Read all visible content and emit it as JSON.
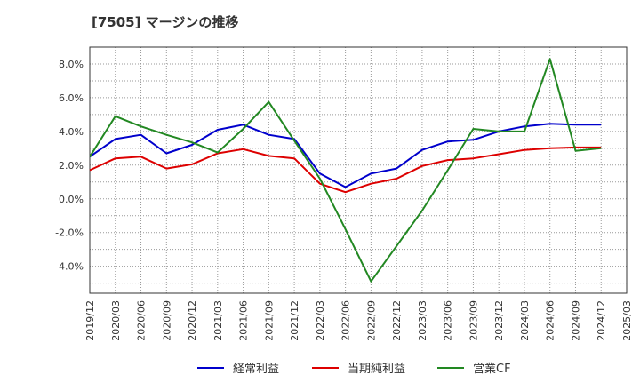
{
  "chart_data": {
    "type": "line",
    "title": "[7505]  マージンの推移",
    "x": [
      "2019/12",
      "2020/03",
      "2020/06",
      "2020/09",
      "2020/12",
      "2021/03",
      "2021/06",
      "2021/09",
      "2021/12",
      "2022/03",
      "2022/06",
      "2022/09",
      "2022/12",
      "2023/03",
      "2023/06",
      "2023/09",
      "2023/12",
      "2024/03",
      "2024/06",
      "2024/09",
      "2024/12"
    ],
    "x_ticks": [
      "2019/12",
      "2020/03",
      "2020/06",
      "2020/09",
      "2020/12",
      "2021/03",
      "2021/06",
      "2021/09",
      "2021/12",
      "2022/03",
      "2022/06",
      "2022/09",
      "2022/12",
      "2023/03",
      "2023/06",
      "2023/09",
      "2023/12",
      "2024/03",
      "2024/06",
      "2024/09",
      "2024/12",
      "2025/03"
    ],
    "y_ticks": [
      "8.0%",
      "6.0%",
      "4.0%",
      "2.0%",
      "0.0%",
      "-2.0%",
      "-4.0%"
    ],
    "y_tick_values": [
      8,
      6,
      4,
      2,
      0,
      -2,
      -4
    ],
    "ylim": [
      -5.6,
      9.0
    ],
    "grid": true,
    "legend_position": "bottom",
    "series": [
      {
        "name": "経常利益",
        "color": "#0000cc",
        "values": [
          2.5,
          3.55,
          3.8,
          2.7,
          3.2,
          4.1,
          4.4,
          3.8,
          3.55,
          1.5,
          0.7,
          1.5,
          1.8,
          2.9,
          3.4,
          3.5,
          4.0,
          4.3,
          4.45,
          4.4,
          4.4
        ]
      },
      {
        "name": "当期純利益",
        "color": "#dd0000",
        "values": [
          1.7,
          2.4,
          2.5,
          1.8,
          2.05,
          2.7,
          2.95,
          2.55,
          2.4,
          0.9,
          0.4,
          0.9,
          1.2,
          1.95,
          2.3,
          2.4,
          2.65,
          2.9,
          3.0,
          3.05,
          3.05
        ]
      },
      {
        "name": "営業CF",
        "color": "#228822",
        "values": [
          2.5,
          4.9,
          4.3,
          3.8,
          3.35,
          2.75,
          4.15,
          5.75,
          3.45,
          1.2,
          -1.8,
          -4.9,
          -2.8,
          -0.7,
          1.7,
          4.15,
          4.0,
          4.0,
          8.3,
          2.85,
          3.0
        ]
      }
    ]
  }
}
